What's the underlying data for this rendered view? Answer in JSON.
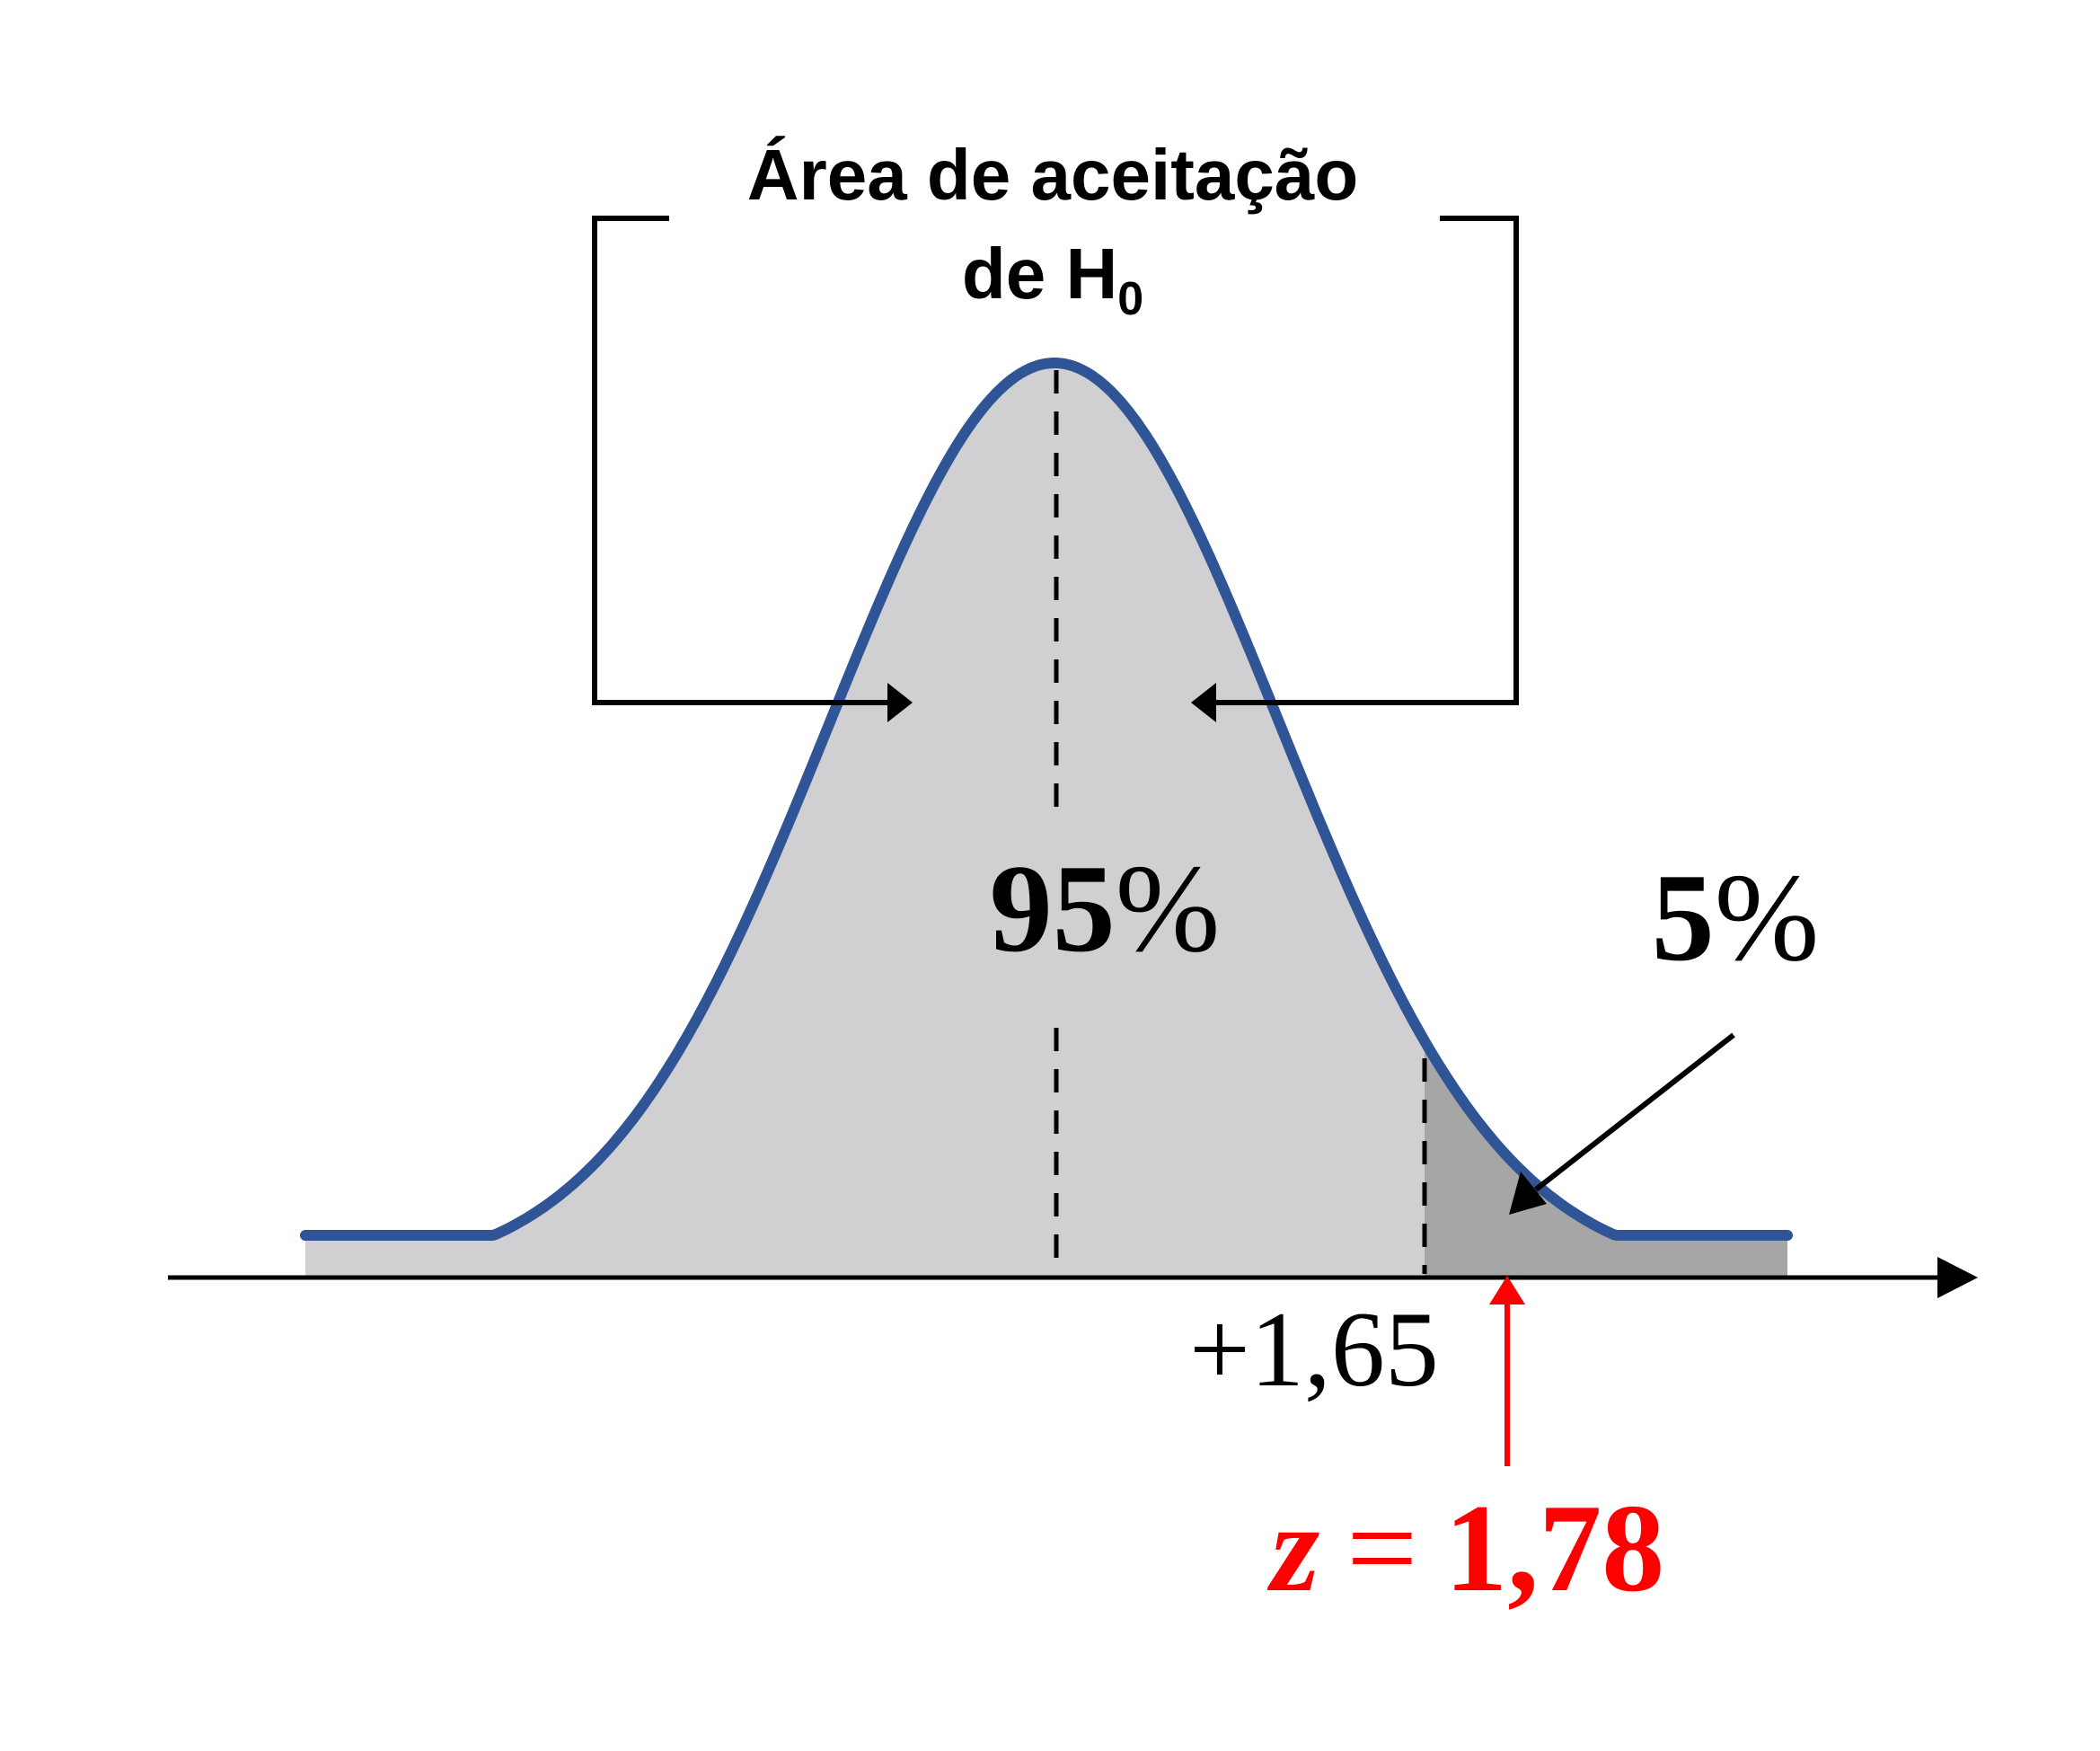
{
  "title": {
    "line1": "Área de aceitação",
    "line2_prefix": "de H",
    "line2_subscript": "0"
  },
  "acceptance_area": {
    "number": "95",
    "percent_sign": "%"
  },
  "rejection_area": {
    "number": "5",
    "percent_sign": "%"
  },
  "critical_value": "+1,65",
  "test_statistic": {
    "symbol": "z",
    "equals": "=",
    "value": "1,78"
  },
  "colors": {
    "curve": "#2f5597",
    "acceptance_fill": "#d0cfd1",
    "rejection_fill": "#a6a6a6",
    "text": "#000000",
    "highlight": "#ff0000"
  }
}
